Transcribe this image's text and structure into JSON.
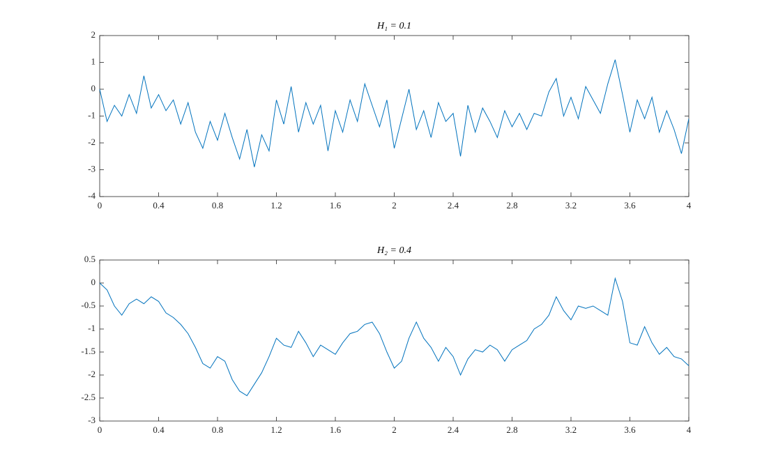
{
  "chart_data": [
    {
      "type": "line",
      "title": "H₁ = 0.1",
      "color": "#0072bd",
      "x": [
        0,
        0.05,
        0.1,
        0.15,
        0.2,
        0.25,
        0.3,
        0.35,
        0.4,
        0.45,
        0.5,
        0.55,
        0.6,
        0.65,
        0.7,
        0.75,
        0.8,
        0.85,
        0.9,
        0.95,
        1,
        1.05,
        1.1,
        1.15,
        1.2,
        1.25,
        1.3,
        1.35,
        1.4,
        1.45,
        1.5,
        1.55,
        1.6,
        1.65,
        1.7,
        1.75,
        1.8,
        1.85,
        1.9,
        1.95,
        2,
        2.05,
        2.1,
        2.15,
        2.2,
        2.25,
        2.3,
        2.35,
        2.4,
        2.45,
        2.5,
        2.55,
        2.6,
        2.65,
        2.7,
        2.75,
        2.8,
        2.85,
        2.9,
        2.95,
        3,
        3.05,
        3.1,
        3.15,
        3.2,
        3.25,
        3.3,
        3.35,
        3.4,
        3.45,
        3.5,
        3.55,
        3.6,
        3.65,
        3.7,
        3.75,
        3.8,
        3.85,
        3.9,
        3.95,
        4
      ],
      "values": [
        0,
        -1.2,
        -0.6,
        -1.0,
        -0.2,
        -0.9,
        0.5,
        -0.7,
        -0.2,
        -0.8,
        -0.4,
        -1.3,
        -0.5,
        -1.6,
        -2.2,
        -1.2,
        -1.9,
        -0.9,
        -1.8,
        -2.6,
        -1.5,
        -2.9,
        -1.7,
        -2.3,
        -0.4,
        -1.3,
        0.1,
        -1.6,
        -0.5,
        -1.3,
        -0.6,
        -2.3,
        -0.8,
        -1.6,
        -0.4,
        -1.2,
        0.2,
        -0.6,
        -1.4,
        -0.4,
        -2.2,
        -1.1,
        0.0,
        -1.5,
        -0.8,
        -1.8,
        -0.5,
        -1.2,
        -0.9,
        -2.5,
        -0.6,
        -1.6,
        -0.7,
        -1.2,
        -1.8,
        -0.8,
        -1.4,
        -0.9,
        -1.5,
        -0.9,
        -1.0,
        -0.1,
        0.4,
        -1.0,
        -0.3,
        -1.1,
        0.1,
        -0.4,
        -0.9,
        0.2,
        1.1,
        -0.2,
        -1.6,
        -0.4,
        -1.1,
        -0.3,
        -1.6,
        -0.8,
        -1.5,
        -2.4,
        -1.1
      ],
      "xlim": [
        0,
        4
      ],
      "xticks": [
        0,
        0.4,
        0.8,
        1.2,
        1.6,
        2,
        2.4,
        2.8,
        3.2,
        3.6,
        4
      ],
      "ylim": [
        -4,
        2
      ],
      "yticks": [
        -4,
        -3,
        -2,
        -1,
        0,
        1,
        2
      ]
    },
    {
      "type": "line",
      "title": "H₂ = 0.4",
      "color": "#0072bd",
      "x": [
        0,
        0.05,
        0.1,
        0.15,
        0.2,
        0.25,
        0.3,
        0.35,
        0.4,
        0.45,
        0.5,
        0.55,
        0.6,
        0.65,
        0.7,
        0.75,
        0.8,
        0.85,
        0.9,
        0.95,
        1,
        1.05,
        1.1,
        1.15,
        1.2,
        1.25,
        1.3,
        1.35,
        1.4,
        1.45,
        1.5,
        1.55,
        1.6,
        1.65,
        1.7,
        1.75,
        1.8,
        1.85,
        1.9,
        1.95,
        2,
        2.05,
        2.1,
        2.15,
        2.2,
        2.25,
        2.3,
        2.35,
        2.4,
        2.45,
        2.5,
        2.55,
        2.6,
        2.65,
        2.7,
        2.75,
        2.8,
        2.85,
        2.9,
        2.95,
        3,
        3.05,
        3.1,
        3.15,
        3.2,
        3.25,
        3.3,
        3.35,
        3.4,
        3.45,
        3.5,
        3.55,
        3.6,
        3.65,
        3.7,
        3.75,
        3.8,
        3.85,
        3.9,
        3.95,
        4
      ],
      "values": [
        0,
        -0.15,
        -0.5,
        -0.7,
        -0.45,
        -0.35,
        -0.45,
        -0.3,
        -0.4,
        -0.65,
        -0.75,
        -0.9,
        -1.1,
        -1.4,
        -1.75,
        -1.85,
        -1.6,
        -1.7,
        -2.1,
        -2.35,
        -2.45,
        -2.2,
        -1.95,
        -1.6,
        -1.2,
        -1.35,
        -1.4,
        -1.05,
        -1.3,
        -1.6,
        -1.35,
        -1.45,
        -1.55,
        -1.3,
        -1.1,
        -1.05,
        -0.9,
        -0.85,
        -1.1,
        -1.5,
        -1.85,
        -1.7,
        -1.2,
        -0.85,
        -1.2,
        -1.4,
        -1.7,
        -1.4,
        -1.6,
        -2.0,
        -1.65,
        -1.45,
        -1.5,
        -1.35,
        -1.45,
        -1.7,
        -1.45,
        -1.35,
        -1.25,
        -1.0,
        -0.9,
        -0.7,
        -0.3,
        -0.6,
        -0.8,
        -0.5,
        -0.55,
        -0.5,
        -0.6,
        -0.7,
        0.1,
        -0.4,
        -1.3,
        -1.35,
        -0.95,
        -1.3,
        -1.55,
        -1.4,
        -1.6,
        -1.65,
        -1.8
      ],
      "xlim": [
        0,
        4
      ],
      "xticks": [
        0,
        0.4,
        0.8,
        1.2,
        1.6,
        2,
        2.4,
        2.8,
        3.2,
        3.6,
        4
      ],
      "ylim": [
        -3,
        0.5
      ],
      "yticks": [
        -3,
        -2.5,
        -2,
        -1.5,
        -1,
        -0.5,
        0,
        0.5
      ]
    }
  ]
}
